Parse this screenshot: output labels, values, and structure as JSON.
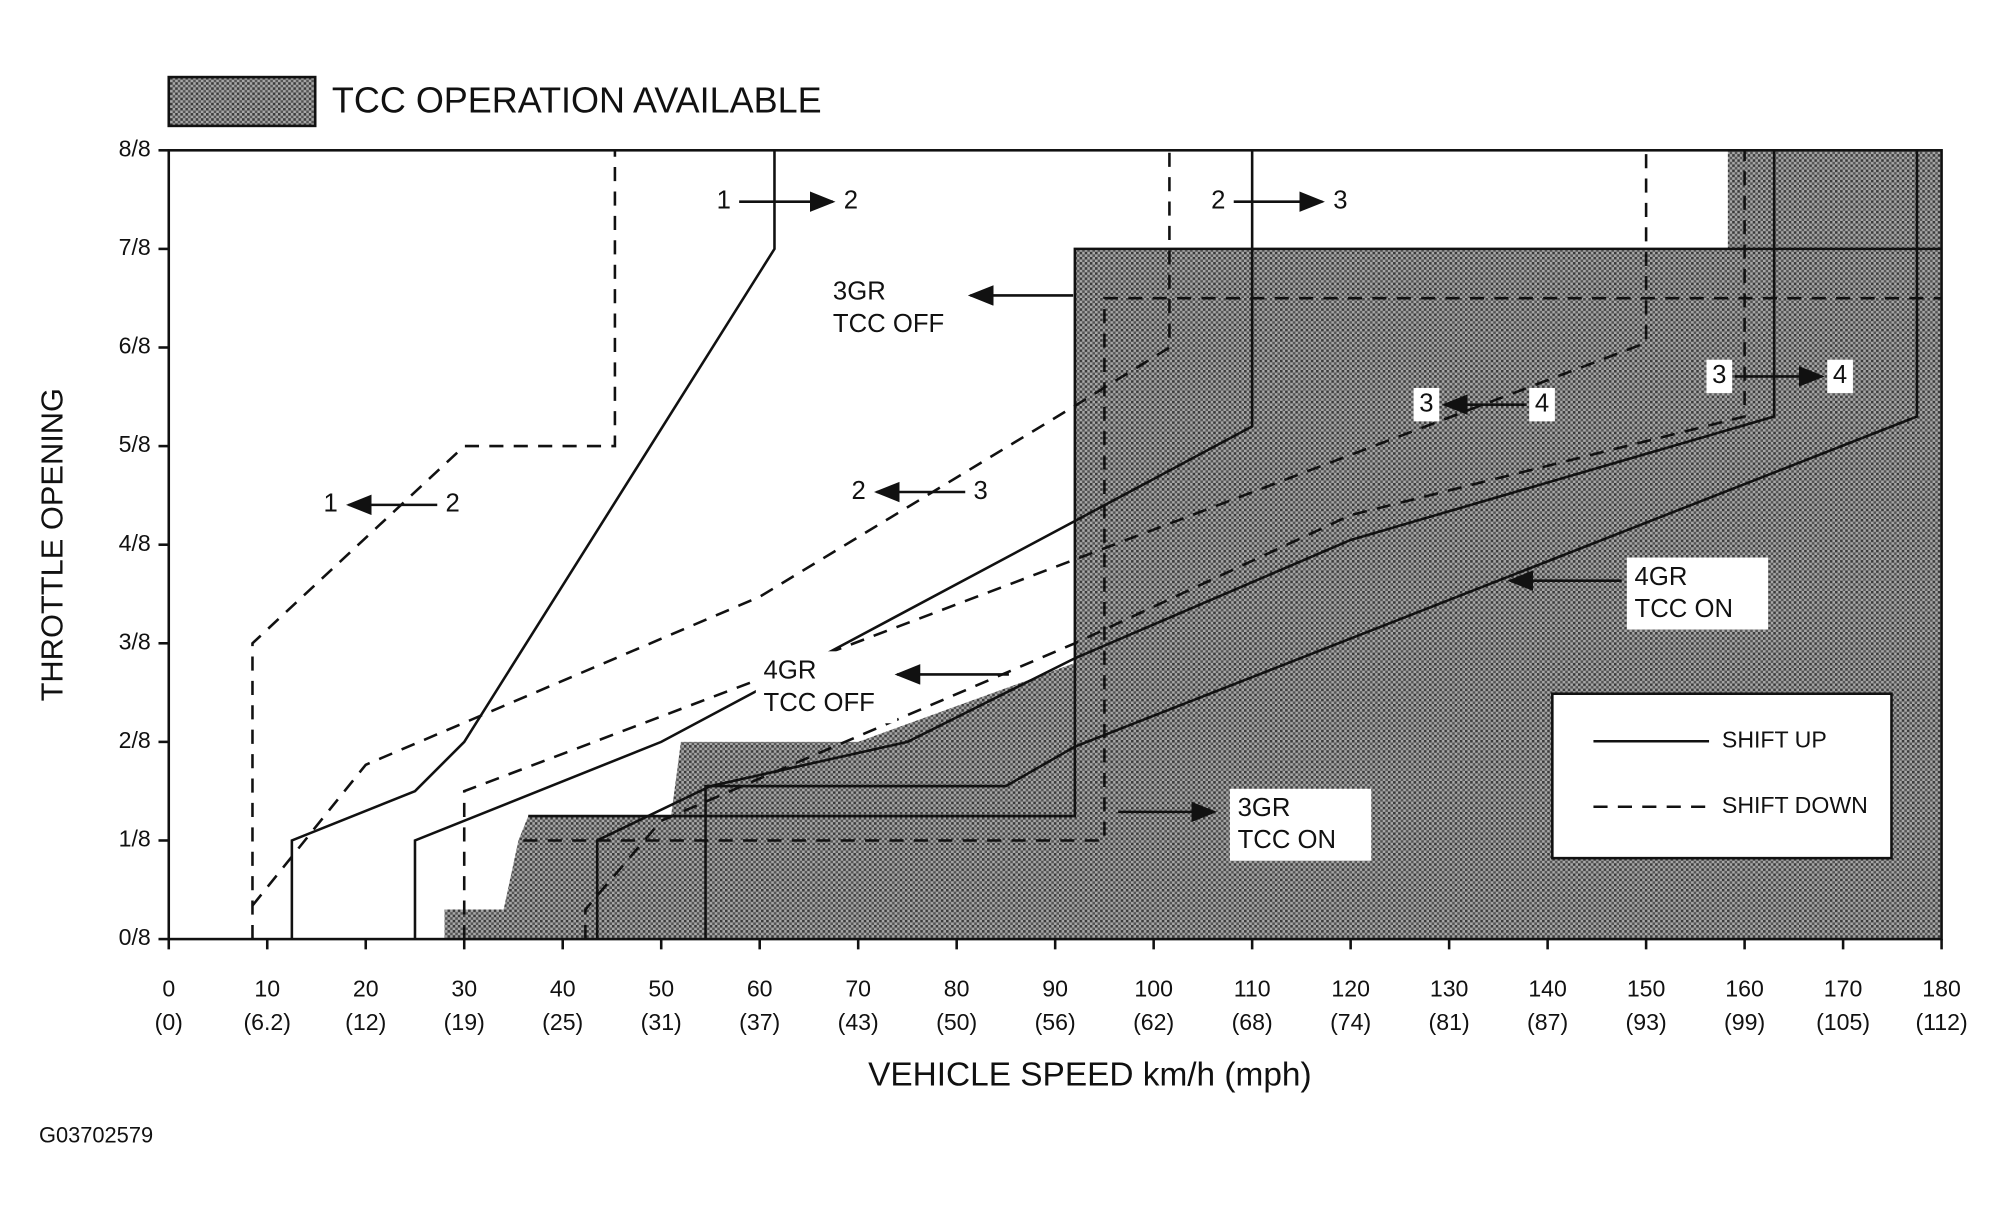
{
  "chart_data": {
    "type": "line",
    "title": "TCC OPERATION AVAILABLE",
    "x_label": "VEHICLE SPEED  km/h (mph)",
    "y_label": "THROTTLE OPENING",
    "footer": "G03702579",
    "xlim": [
      0,
      180
    ],
    "xticks": [
      0,
      10,
      20,
      30,
      40,
      50,
      60,
      70,
      80,
      90,
      100,
      110,
      120,
      130,
      140,
      150,
      160,
      170,
      180
    ],
    "x_tick_sublabels": [
      "(0)",
      "(6.2)",
      "(12)",
      "(19)",
      "(25)",
      "(31)",
      "(37)",
      "(43)",
      "(50)",
      "(56)",
      "(62)",
      "(68)",
      "(74)",
      "(81)",
      "(87)",
      "(93)",
      "(99)",
      "(105)",
      "(112)"
    ],
    "ylim": [
      0,
      1
    ],
    "yticks": [
      {
        "value": 0,
        "label": "0/8"
      },
      {
        "value": 0.125,
        "label": "1/8"
      },
      {
        "value": 0.25,
        "label": "2/8"
      },
      {
        "value": 0.375,
        "label": "3/8"
      },
      {
        "value": 0.5,
        "label": "4/8"
      },
      {
        "value": 0.625,
        "label": "5/8"
      },
      {
        "value": 0.75,
        "label": "6/8"
      },
      {
        "value": 0.875,
        "label": "7/8"
      },
      {
        "value": 1,
        "label": "8/8"
      }
    ],
    "regions": [
      {
        "x": [
          28,
          28,
          34,
          35.5,
          36.5,
          51,
          52,
          70,
          92,
          92,
          158.3,
          158.3,
          180,
          180
        ],
        "y": [
          0,
          0.0375,
          0.0375,
          0.125,
          0.156,
          0.156,
          0.25,
          0.25,
          0.35,
          0.875,
          0.875,
          1,
          1,
          0
        ]
      }
    ],
    "legend": [
      {
        "label": "SHIFT UP",
        "dash": "solid"
      },
      {
        "label": "SHIFT DOWN",
        "dash": "dashed"
      }
    ],
    "series": [
      {
        "dash": "solid",
        "x": [
          12.5,
          12.5,
          25,
          30,
          61.5,
          61.5
        ],
        "y": [
          0,
          0.125,
          0.1875,
          0.25,
          0.875,
          1
        ]
      },
      {
        "dash": "dashed",
        "x": [
          8.5,
          8.5,
          30,
          45.3,
          45.3
        ],
        "y": [
          0,
          0.375,
          0.625,
          0.625,
          1
        ]
      },
      {
        "dash": "solid",
        "x": [
          25,
          25,
          50,
          110,
          110
        ],
        "y": [
          0,
          0.125,
          0.25,
          0.65,
          1
        ]
      },
      {
        "dash": "dashed",
        "x": [
          8.5,
          20,
          60,
          92,
          101.6,
          101.6
        ],
        "y": [
          0.0425,
          0.221,
          0.434,
          0.676,
          0.75,
          1
        ]
      },
      {
        "dash": "dashed",
        "x": [
          30,
          30,
          150,
          150
        ],
        "y": [
          0,
          0.1875,
          0.756,
          1
        ]
      },
      {
        "dash": "solid",
        "x": [
          43.5,
          43.5,
          55,
          75,
          92,
          120,
          163,
          163
        ],
        "y": [
          0,
          0.125,
          0.194,
          0.25,
          0.356,
          0.506,
          0.6625,
          1
        ]
      },
      {
        "dash": "dashed",
        "x": [
          42.3,
          42.3,
          50,
          92,
          120,
          160,
          160
        ],
        "y": [
          0,
          0.0375,
          0.15,
          0.375,
          0.5375,
          0.6625,
          1
        ]
      },
      {
        "dash": "solid",
        "x": [
          54.5,
          54.5,
          85,
          92,
          177.5,
          177.5
        ],
        "y": [
          0,
          0.194,
          0.194,
          0.244,
          0.6625,
          1
        ]
      },
      {
        "dash": "solid",
        "x": [
          36.5,
          92,
          92,
          180
        ],
        "y": [
          0.156,
          0.156,
          0.875,
          0.875
        ]
      },
      {
        "dash": "dashed",
        "x": [
          36,
          95,
          95,
          180
        ],
        "y": [
          0.125,
          0.125,
          0.8125,
          0.8125
        ]
      }
    ],
    "annotations": [
      {
        "lines": [
          "1",
          "2"
        ],
        "arrow": "right"
      },
      {
        "lines": [
          "2",
          "3"
        ],
        "arrow": "right"
      },
      {
        "lines": [
          "1",
          "2"
        ],
        "arrow": "left"
      },
      {
        "lines": [
          "2",
          "3"
        ],
        "arrow": "left"
      },
      {
        "lines": [
          "3",
          "4"
        ],
        "arrow": "left"
      },
      {
        "lines": [
          "3",
          "4"
        ],
        "arrow": "right"
      },
      {
        "lines": [
          "3GR",
          "TCC OFF"
        ],
        "arrow": "left"
      },
      {
        "lines": [
          "4GR",
          "TCC OFF"
        ],
        "arrow": "left"
      },
      {
        "lines": [
          "3GR",
          "TCC ON"
        ],
        "arrow": "right"
      },
      {
        "lines": [
          "4GR",
          "TCC ON"
        ],
        "arrow": "left"
      }
    ]
  }
}
